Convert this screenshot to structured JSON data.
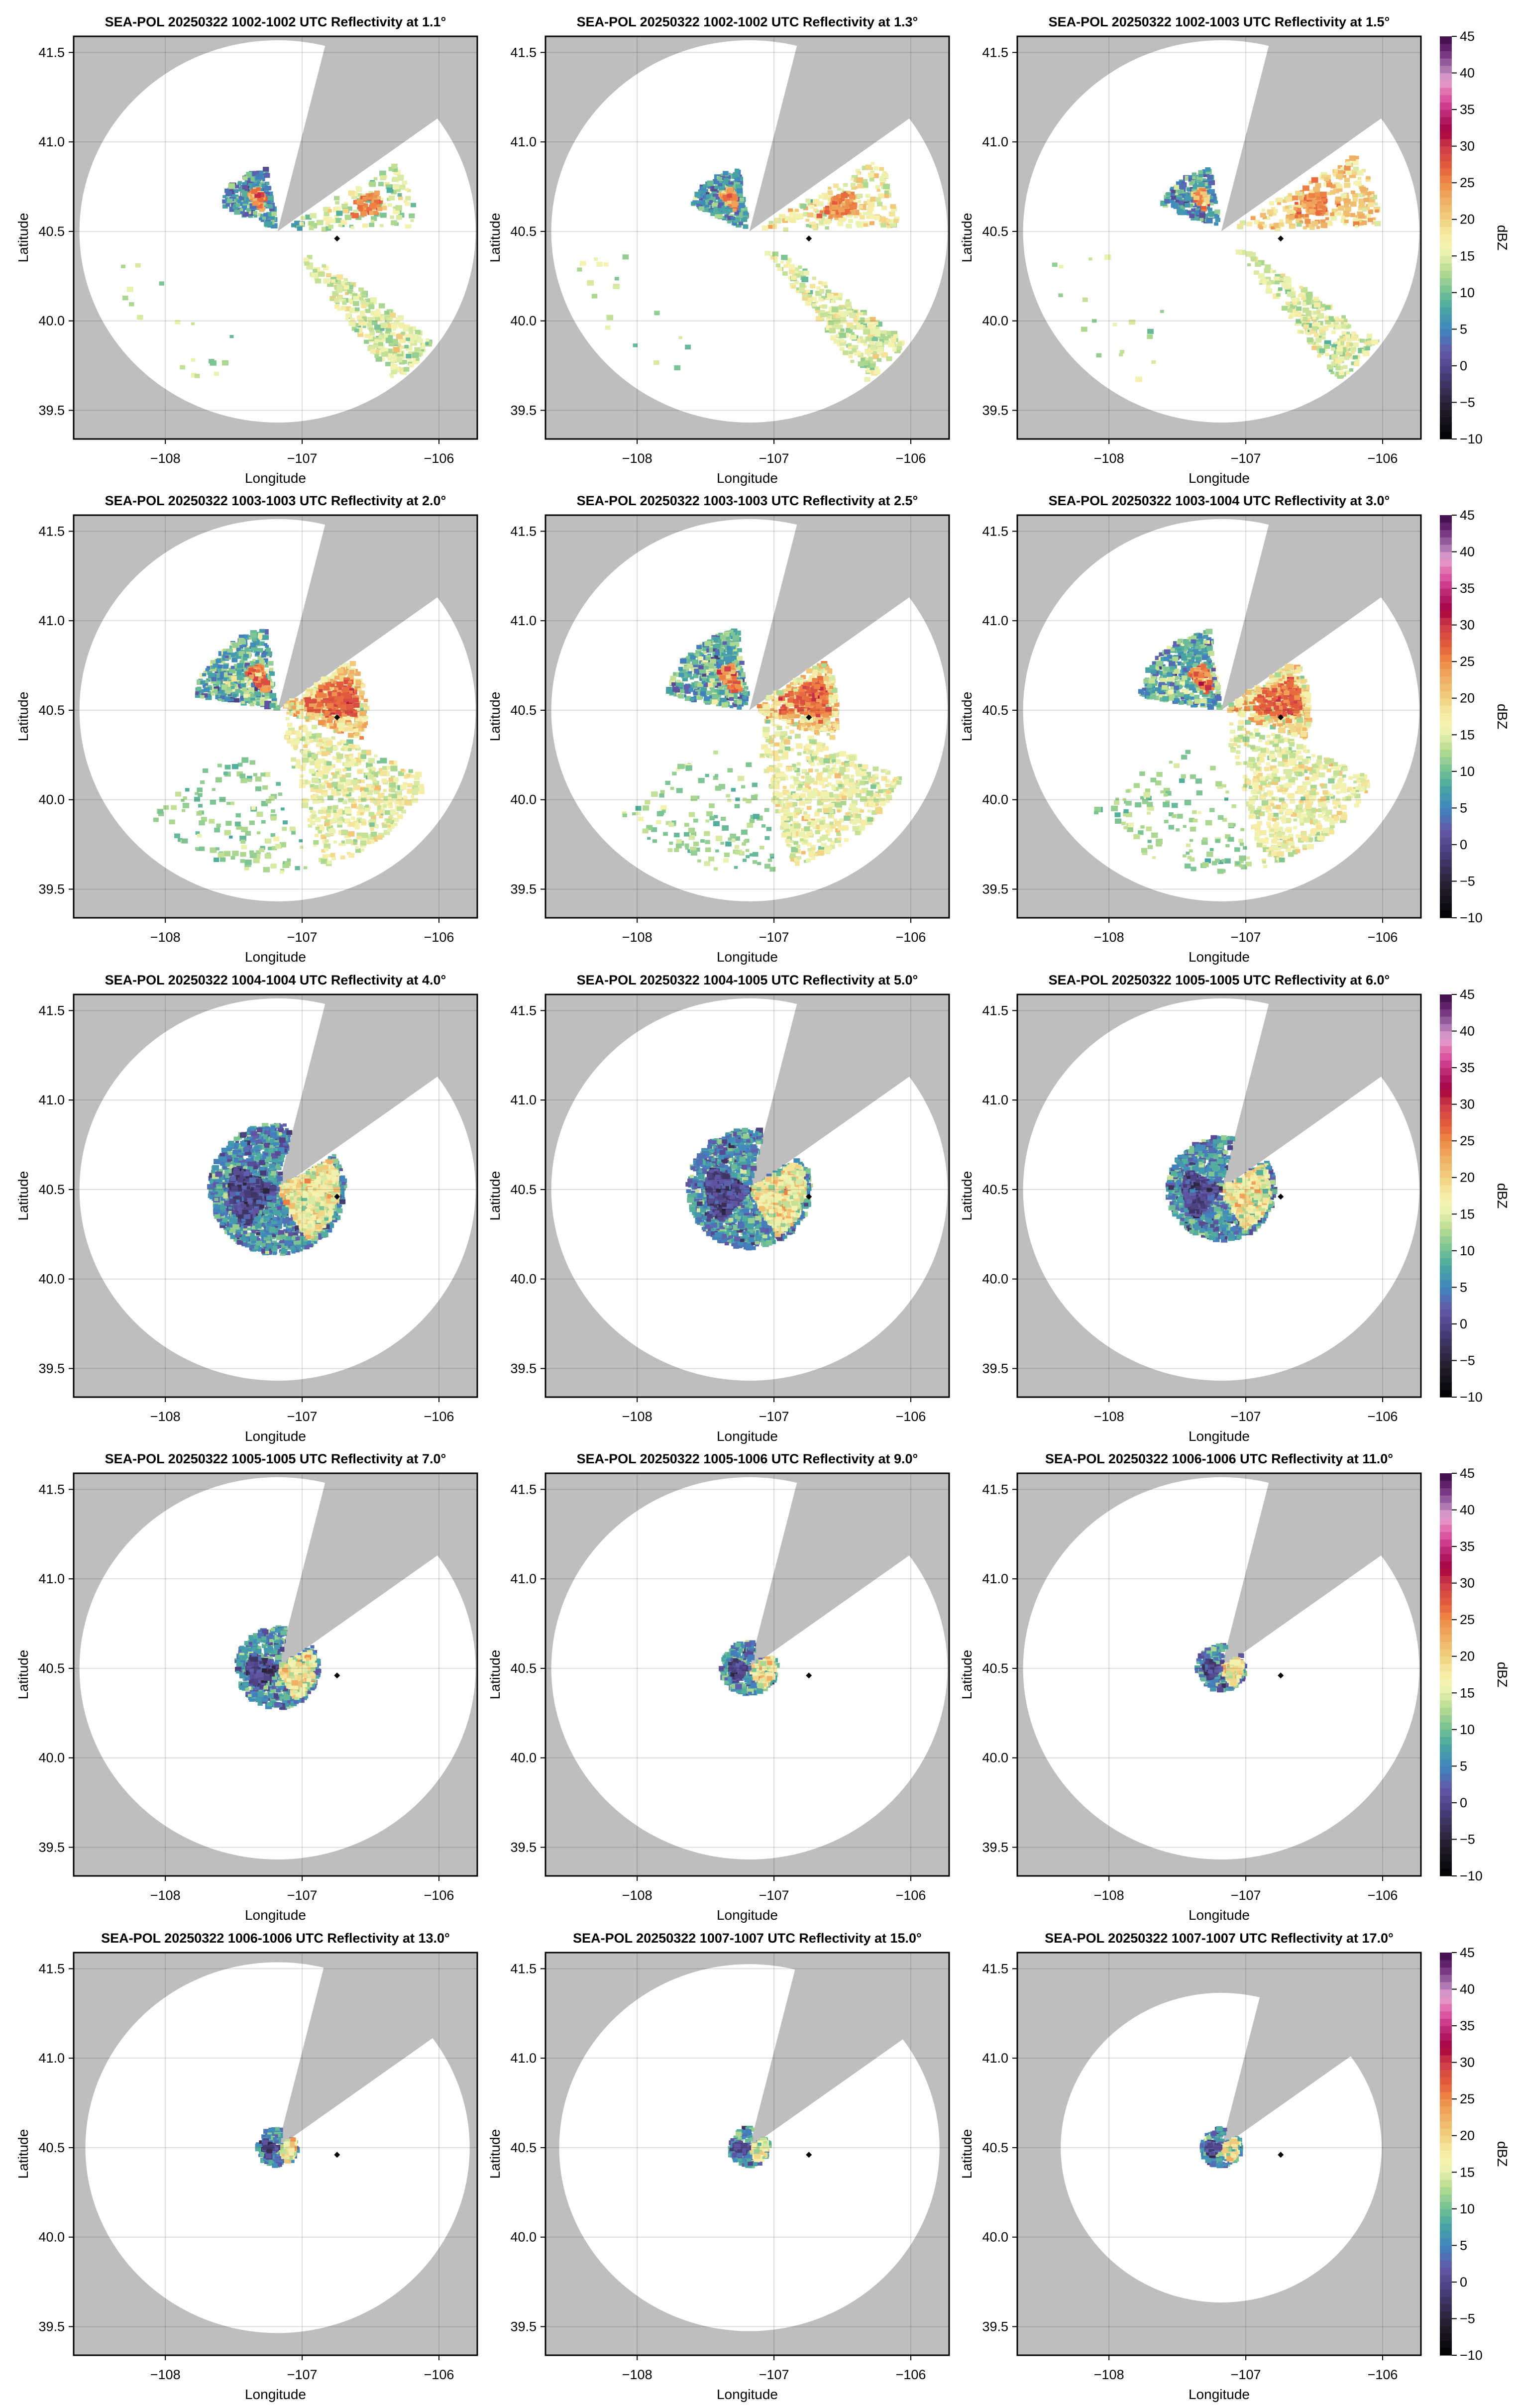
{
  "figure": {
    "background_color": "#ffffff",
    "no_data_color": "#bebebe",
    "in_range_color": "#ffffff",
    "marker_color": "#000000"
  },
  "colorbar": {
    "label": "dBZ",
    "range": [
      -10,
      45
    ],
    "ticks": [
      -10,
      -5,
      0,
      5,
      10,
      15,
      20,
      25,
      30,
      35,
      40,
      45
    ],
    "tick_labels": [
      "−10",
      "−5",
      "0",
      "5",
      "10",
      "15",
      "20",
      "25",
      "30",
      "35",
      "40",
      "45"
    ],
    "colormap_stops": [
      [
        -10,
        "#000000"
      ],
      [
        -5,
        "#2b2438"
      ],
      [
        -1,
        "#4a3f7e"
      ],
      [
        2,
        "#6358a8"
      ],
      [
        5,
        "#3f86c0"
      ],
      [
        8,
        "#4aa8a0"
      ],
      [
        10,
        "#70bf95"
      ],
      [
        13,
        "#b8dc90"
      ],
      [
        16,
        "#f5f5b5"
      ],
      [
        18,
        "#f5e9a0"
      ],
      [
        20,
        "#f1d080"
      ],
      [
        23,
        "#efa860"
      ],
      [
        25,
        "#ee8a48"
      ],
      [
        27,
        "#e6603c"
      ],
      [
        30,
        "#cd3a48"
      ],
      [
        32,
        "#a6003f"
      ],
      [
        34,
        "#b3206a"
      ],
      [
        36,
        "#d74796"
      ],
      [
        38,
        "#e480b8"
      ],
      [
        39,
        "#e3a2d2"
      ],
      [
        41,
        "#a26aa8"
      ],
      [
        43,
        "#6b2a78"
      ],
      [
        45,
        "#3a0a45"
      ]
    ]
  },
  "radar": {
    "location": [
      -107.18,
      40.5
    ],
    "marker": [
      -106.745,
      40.46
    ]
  },
  "chart_data": [
    {
      "type": "heatmap",
      "title": "SEA-POL 20250322 1002-1002 UTC Reflectivity at 1.1°",
      "elevation": 1.1
    },
    {
      "type": "heatmap",
      "title": "SEA-POL 20250322 1002-1002 UTC Reflectivity at 1.3°",
      "elevation": 1.3
    },
    {
      "type": "heatmap",
      "title": "SEA-POL 20250322 1002-1003 UTC Reflectivity at 1.5°",
      "elevation": 1.5
    },
    {
      "type": "heatmap",
      "title": "SEA-POL 20250322 1003-1003 UTC Reflectivity at 2.0°",
      "elevation": 2.0
    },
    {
      "type": "heatmap",
      "title": "SEA-POL 20250322 1003-1003 UTC Reflectivity at 2.5°",
      "elevation": 2.5
    },
    {
      "type": "heatmap",
      "title": "SEA-POL 20250322 1003-1004 UTC Reflectivity at 3.0°",
      "elevation": 3.0
    },
    {
      "type": "heatmap",
      "title": "SEA-POL 20250322 1004-1004 UTC Reflectivity at 4.0°",
      "elevation": 4.0
    },
    {
      "type": "heatmap",
      "title": "SEA-POL 20250322 1004-1005 UTC Reflectivity at 5.0°",
      "elevation": 5.0
    },
    {
      "type": "heatmap",
      "title": "SEA-POL 20250322 1005-1005 UTC Reflectivity at 6.0°",
      "elevation": 6.0
    },
    {
      "type": "heatmap",
      "title": "SEA-POL 20250322 1005-1005 UTC Reflectivity at 7.0°",
      "elevation": 7.0
    },
    {
      "type": "heatmap",
      "title": "SEA-POL 20250322 1005-1006 UTC Reflectivity at 9.0°",
      "elevation": 9.0
    },
    {
      "type": "heatmap",
      "title": "SEA-POL 20250322 1006-1006 UTC Reflectivity at 11.0°",
      "elevation": 11.0
    },
    {
      "type": "heatmap",
      "title": "SEA-POL 20250322 1006-1006 UTC Reflectivity at 13.0°",
      "elevation": 13.0
    },
    {
      "type": "heatmap",
      "title": "SEA-POL 20250322 1007-1007 UTC Reflectivity at 15.0°",
      "elevation": 15.0
    },
    {
      "type": "heatmap",
      "title": "SEA-POL 20250322 1007-1007 UTC Reflectivity at 17.0°",
      "elevation": 17.0
    }
  ],
  "axes": {
    "xlabel": "Longitude",
    "ylabel": "Latitude",
    "xlim": [
      -108.67,
      -105.72
    ],
    "ylim": [
      39.34,
      41.59
    ],
    "xticks": [
      -108,
      -107,
      -106
    ],
    "xtick_labels": [
      "−108",
      "−107",
      "−106"
    ],
    "yticks": [
      39.5,
      40.0,
      40.5,
      41.0,
      41.5
    ],
    "ytick_labels": [
      "39.5",
      "40.0",
      "40.5",
      "41.0",
      "41.5"
    ],
    "grid": true
  }
}
